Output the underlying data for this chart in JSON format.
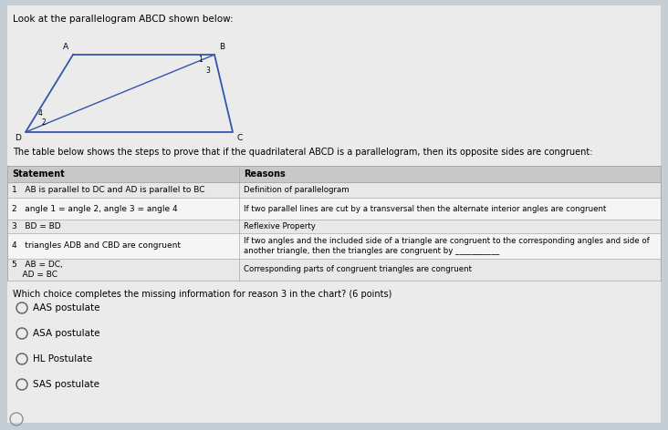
{
  "bg_color": "#c5cdd5",
  "content_bg": "#f0f0f0",
  "title_text": "Look at the parallelogram ABCD shown below:",
  "subtitle_text": "The table below shows the steps to prove that if the quadrilateral ABCD is a parallelogram, then its opposite sides are congruent:",
  "question_text": "Which choice completes the missing information for reason 3 in the chart? (6 points)",
  "table_headers": [
    "Statement",
    "Reasons"
  ],
  "table_rows": [
    [
      "1   AB is parallel to DC and AD is parallel to BC",
      "Definition of parallelogram"
    ],
    [
      "2   angle 1 = angle 2, angle 3 = angle 4",
      "If two parallel lines are cut by a transversal then the alternate interior angles are congruent"
    ],
    [
      "3   BD = BD",
      "Reflexive Property"
    ],
    [
      "4   triangles ADB and CBD are congruent",
      "If two angles and the included side of a triangle are congruent to the corresponding angles and side of another triangle, then the triangles are congruent by ___________"
    ],
    [
      "5   AB = DC,\n    AD = BC",
      "Corresponding parts of congruent triangles are congruent"
    ]
  ],
  "choices": [
    "AAS postulate",
    "ASA postulate",
    "HL Postulate",
    "SAS postulate"
  ],
  "table_col_split": 0.355,
  "table_header_color": "#c8c8c8",
  "table_row_colors": [
    "#e8e8e8",
    "#f5f5f5"
  ],
  "table_line_color": "#aaaaaa",
  "para_color": "#3355aa",
  "title_fontsize": 7.5,
  "subtitle_fontsize": 7.0,
  "table_fontsize": 6.5,
  "choice_fontsize": 7.5
}
